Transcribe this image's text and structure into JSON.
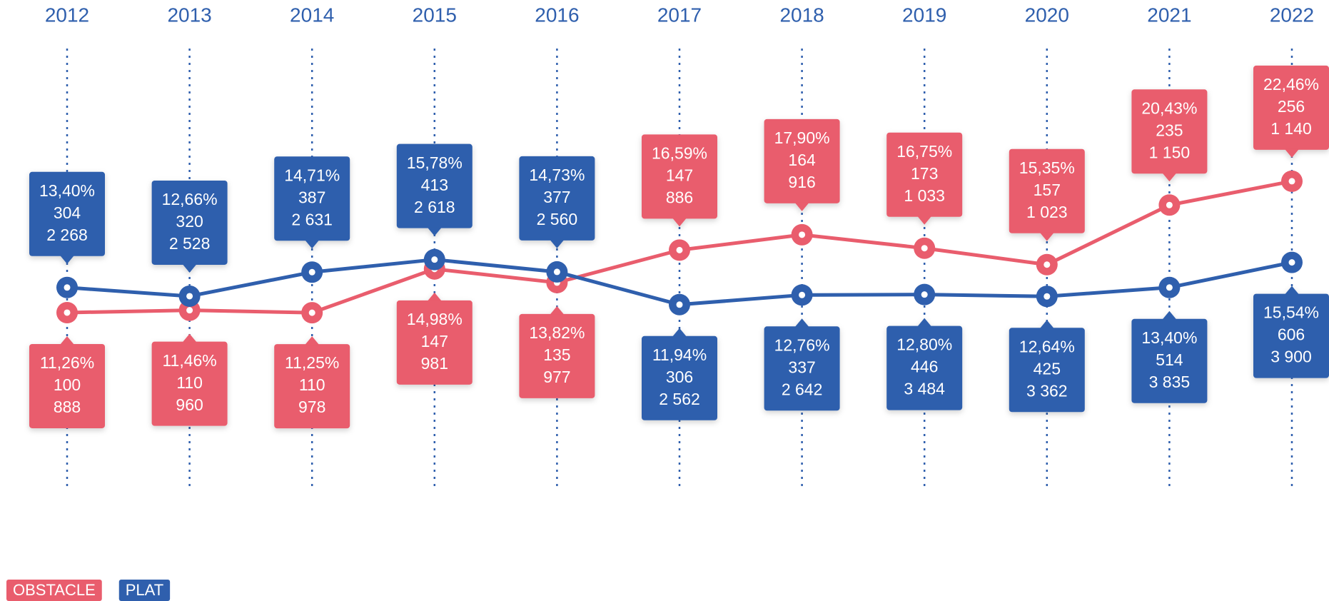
{
  "chart_data": {
    "type": "line",
    "categories": [
      "2012",
      "2013",
      "2014",
      "2015",
      "2016",
      "2017",
      "2018",
      "2019",
      "2020",
      "2021",
      "2022"
    ],
    "ylim": [
      0,
      30
    ],
    "series": [
      {
        "name": "OBSTACLE",
        "color": "#e95d6d",
        "values": [
          11.26,
          11.46,
          11.25,
          14.98,
          13.82,
          16.59,
          17.9,
          16.75,
          15.35,
          20.43,
          22.46
        ],
        "value_labels": [
          "11,26%",
          "11,46%",
          "11,25%",
          "14,98%",
          "13,82%",
          "16,59%",
          "17,90%",
          "16,75%",
          "15,35%",
          "20,43%",
          "22,46%"
        ],
        "counts": [
          100,
          110,
          110,
          147,
          135,
          147,
          164,
          173,
          157,
          235,
          256
        ],
        "totals": [
          "888",
          "960",
          "978",
          "981",
          "977",
          "886",
          "916",
          "1 033",
          "1 023",
          "1 150",
          "1 140"
        ]
      },
      {
        "name": "PLAT",
        "color": "#2f5fad",
        "values": [
          13.4,
          12.66,
          14.71,
          15.78,
          14.73,
          11.94,
          12.76,
          12.8,
          12.64,
          13.4,
          15.54
        ],
        "value_labels": [
          "13,40%",
          "12,66%",
          "14,71%",
          "15,78%",
          "14,73%",
          "11,94%",
          "12,76%",
          "12,80%",
          "12,64%",
          "13,40%",
          "15,54%"
        ],
        "counts": [
          304,
          320,
          387,
          413,
          377,
          306,
          337,
          446,
          425,
          514,
          606
        ],
        "totals": [
          "2 268",
          "2 528",
          "2 631",
          "2 618",
          "2 560",
          "2 562",
          "2 642",
          "3 484",
          "3 362",
          "3 835",
          "3 900"
        ]
      }
    ]
  }
}
